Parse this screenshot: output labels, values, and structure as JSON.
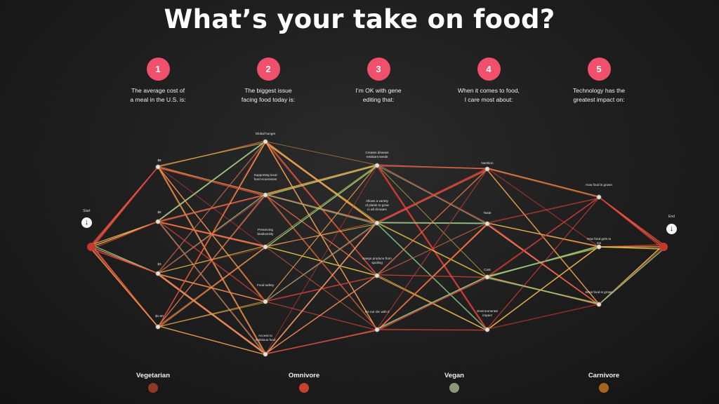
{
  "title": "What’s your take on food?",
  "questions": [
    {
      "num": "1",
      "line1": "The average cost of",
      "line2": "a meal in the U.S. is:",
      "answers": [
        "$8",
        "$5",
        "$3",
        "$1.00"
      ]
    },
    {
      "num": "2",
      "line1": "The biggest issue",
      "line2": "facing food today is:",
      "answers": [
        "Global hunger",
        "Supporting local food economies",
        "Preserving biodiversity",
        "Food safety",
        "Access to nutritious food"
      ]
    },
    {
      "num": "3",
      "line1": "I’m OK with gene",
      "line2": "editing that:",
      "answers": [
        "Creates disease resistant seeds",
        "Allows a variety of plants to grow in all climates",
        "Keeps produce from spoiling",
        "I’m not OK with it"
      ]
    },
    {
      "num": "4",
      "line1": "When it comes to food,",
      "line2": "I care most about:",
      "answers": [
        "Nutrition",
        "Taste",
        "Cost",
        "Environmental impact"
      ]
    },
    {
      "num": "5",
      "line1": "Technology has the",
      "line2": "greatest impact on:",
      "answers": [
        "How food is grown",
        "How food gets to me",
        "What food is grown"
      ]
    }
  ],
  "start_label": "Start",
  "end_label": "End",
  "arrow_icon": "arrow-down-icon",
  "legend": [
    {
      "label": "Vegetarian",
      "color": "#8f3a24"
    },
    {
      "label": "Omnivore",
      "color": "#c8412e"
    },
    {
      "label": "Vegan",
      "color": "#8a9a78"
    },
    {
      "label": "Carnivore",
      "color": "#a7641c"
    }
  ],
  "thread_colors": [
    "#e8473a",
    "#f06b4a",
    "#d93a34",
    "#f2a34a",
    "#e9d24a",
    "#c83a3a",
    "#8ccf8a",
    "#f08a5a"
  ]
}
